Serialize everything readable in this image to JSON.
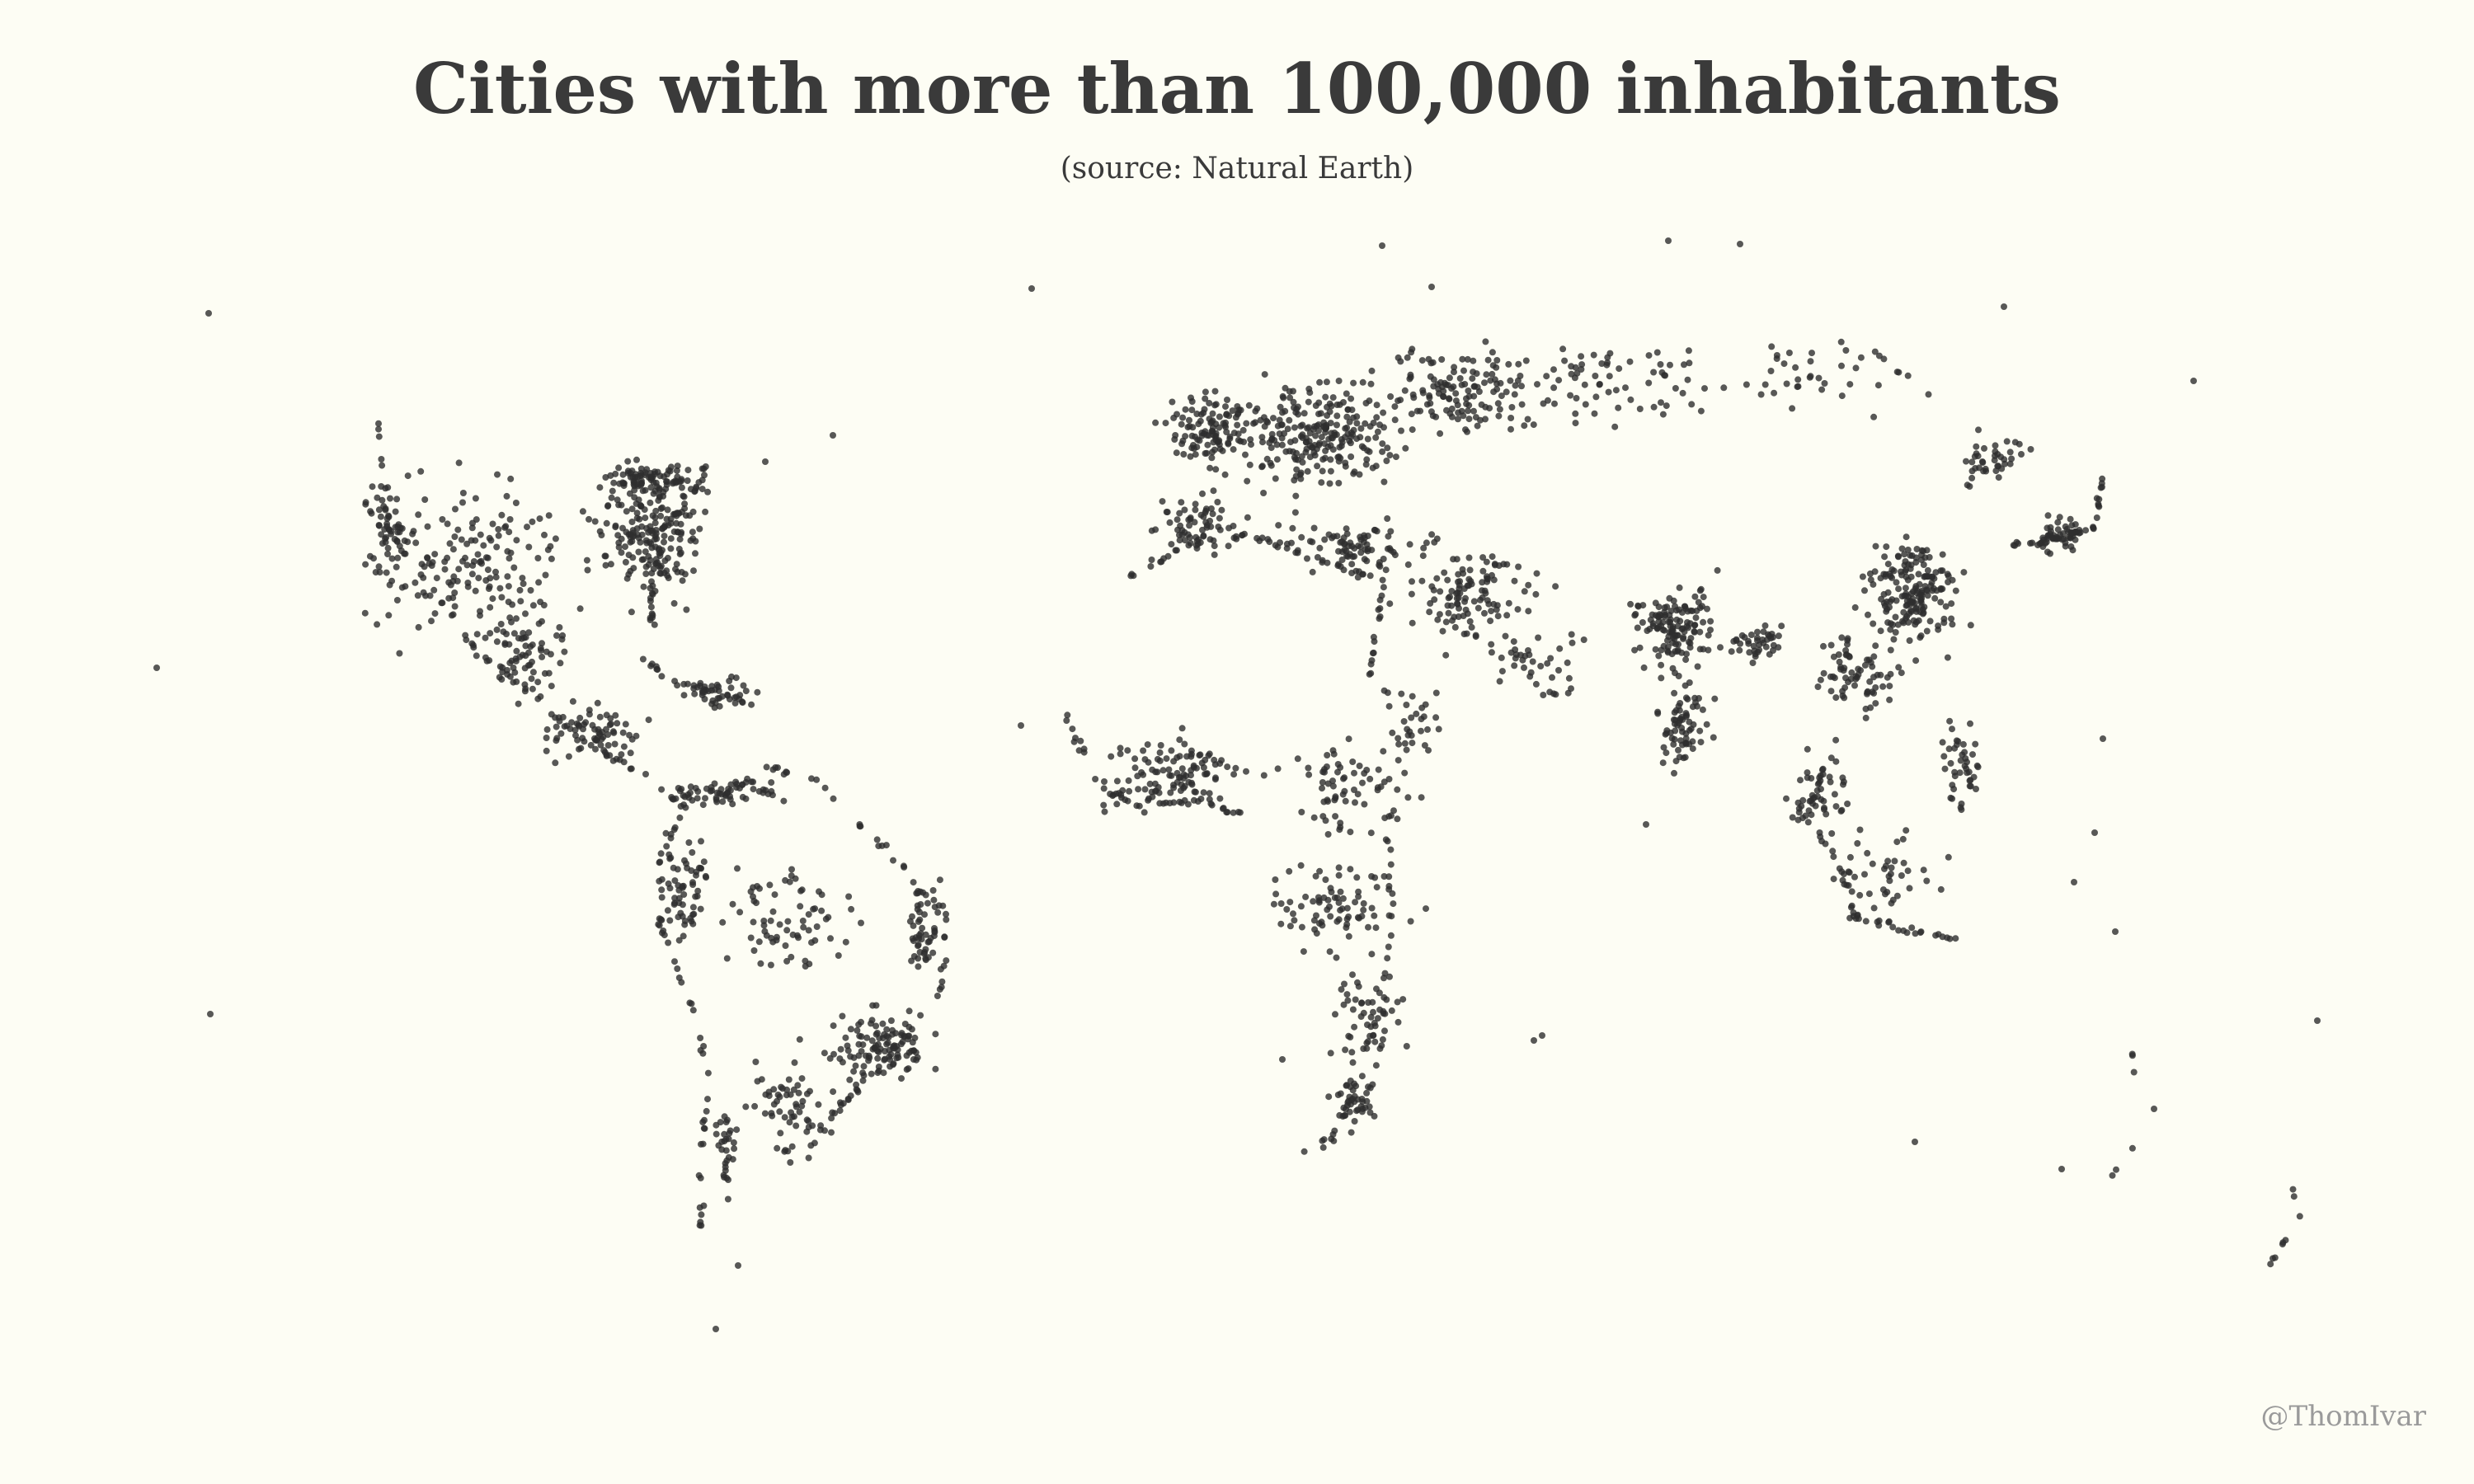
{
  "title": "Cities with more than 100,000 inhabitants",
  "subtitle": "(source: Natural Earth)",
  "credit": "@ThomIvar",
  "colors": {
    "background": "#fdfdf4",
    "dot": "#2e2e2e",
    "title": "#3a3a3a",
    "credit": "#9a9a9a"
  },
  "map": {
    "projection": "equirectangular-like world",
    "marker": "dot",
    "cities_shown": "approx. several thousand dots (schematic)"
  }
}
